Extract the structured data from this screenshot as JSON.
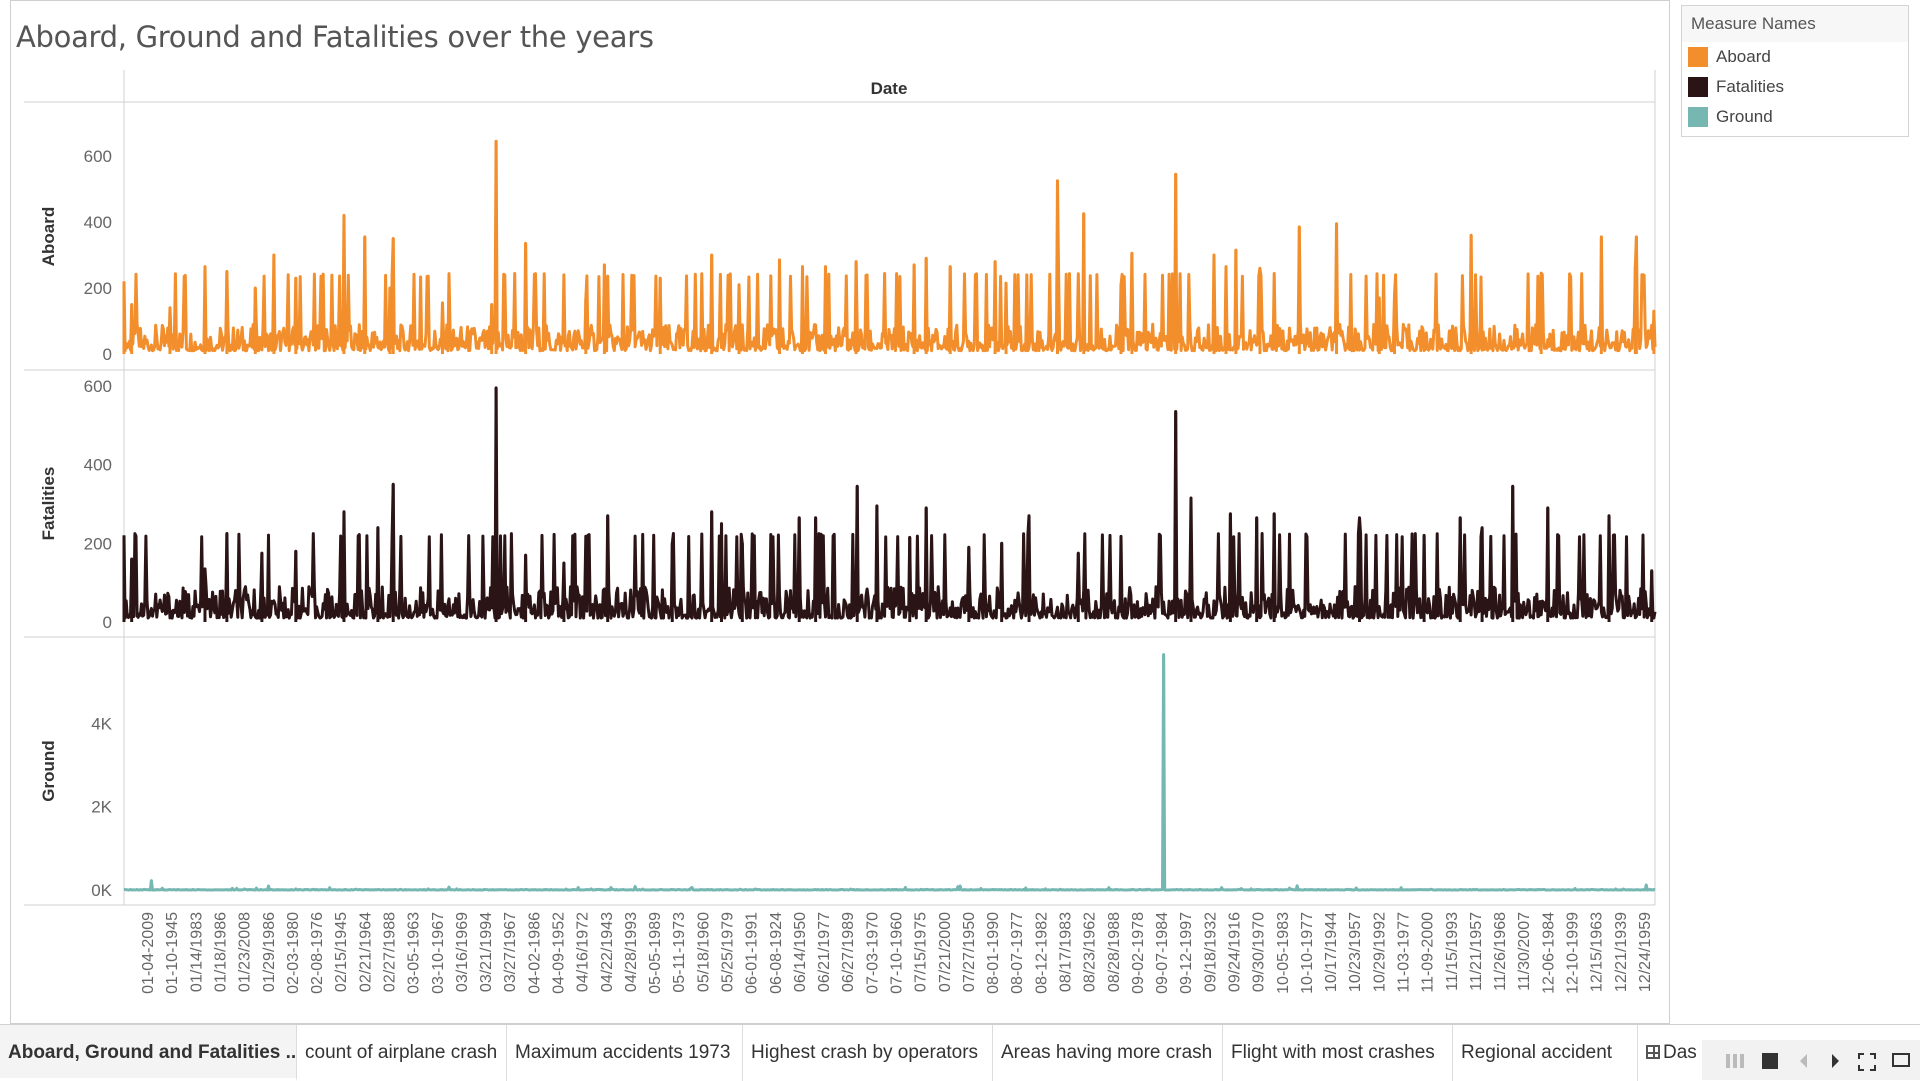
{
  "sheet": {
    "title": "Aboard, Ground and Fatalities over the years"
  },
  "legend": {
    "title": "Measure Names",
    "items": [
      {
        "label": "Aboard",
        "color": "#F28E2B"
      },
      {
        "label": "Fatalities",
        "color": "#2B1415"
      },
      {
        "label": "Ground",
        "color": "#76B7B2"
      }
    ]
  },
  "chart_data": {
    "type": "line",
    "title": "Aboard, Ground and Fatalities over the years",
    "column_header": "Date",
    "x_tick_labels": [
      "01-04-2009",
      "01-10-1945",
      "01/14/1983",
      "01/18/1986",
      "01/23/2008",
      "01/29/1986",
      "02-03-1980",
      "02-08-1976",
      "02/15/1945",
      "02/21/1964",
      "02/27/1988",
      "03-05-1963",
      "03-10-1967",
      "03/16/1969",
      "03/21/1994",
      "03/27/1967",
      "04-02-1986",
      "04-09-1952",
      "04/16/1972",
      "04/22/1943",
      "04/28/1993",
      "05-05-1989",
      "05-11-1973",
      "05/18/1960",
      "05/25/1979",
      "06-01-1991",
      "06-08-1924",
      "06/14/1950",
      "06/21/1977",
      "06/27/1989",
      "07-03-1970",
      "07-10-1960",
      "07/15/1975",
      "07/21/2000",
      "07/27/1950",
      "08-01-1990",
      "08-07-1977",
      "08-12-1982",
      "08/17/1983",
      "08/23/1962",
      "08/28/1988",
      "09-02-1978",
      "09-07-1984",
      "09-12-1997",
      "09/18/1932",
      "09/24/1916",
      "09/30/1970",
      "10-05-1983",
      "10-10-1977",
      "10/17/1944",
      "10/23/1957",
      "10/29/1992",
      "11-03-1977",
      "11-09-2000",
      "11/15/1993",
      "11/21/1957",
      "11/26/1968",
      "11/30/2007",
      "12-06-1984",
      "12-10-1999",
      "12/15/1963",
      "12/21/1939",
      "12/24/1959"
    ],
    "series": [
      {
        "name": "Aboard",
        "color": "#F28E2B",
        "ylim": [
          0,
          700
        ],
        "yticks": [
          0,
          200,
          400,
          600
        ],
        "ytick_labels": [
          "0",
          "200",
          "400",
          "600"
        ],
        "axis_label": "Aboard",
        "spikes": [
          [
            0.0,
            220
          ],
          [
            0.005,
            150
          ],
          [
            0.03,
            140
          ],
          [
            0.053,
            265
          ],
          [
            0.067,
            250
          ],
          [
            0.086,
            200
          ],
          [
            0.098,
            300
          ],
          [
            0.112,
            230
          ],
          [
            0.144,
            420
          ],
          [
            0.157,
            355
          ],
          [
            0.174,
            200
          ],
          [
            0.176,
            350
          ],
          [
            0.208,
            155
          ],
          [
            0.24,
            150
          ],
          [
            0.243,
            645
          ],
          [
            0.262,
            335
          ],
          [
            0.302,
            165
          ],
          [
            0.314,
            270
          ],
          [
            0.35,
            230
          ],
          [
            0.384,
            300
          ],
          [
            0.402,
            210
          ],
          [
            0.428,
            285
          ],
          [
            0.443,
            265
          ],
          [
            0.458,
            265
          ],
          [
            0.478,
            280
          ],
          [
            0.516,
            270
          ],
          [
            0.524,
            290
          ],
          [
            0.54,
            265
          ],
          [
            0.569,
            280
          ],
          [
            0.576,
            215
          ],
          [
            0.61,
            525
          ],
          [
            0.627,
            425
          ],
          [
            0.651,
            210
          ],
          [
            0.658,
            305
          ],
          [
            0.687,
            545
          ],
          [
            0.712,
            300
          ],
          [
            0.72,
            265
          ],
          [
            0.726,
            315
          ],
          [
            0.742,
            260
          ],
          [
            0.768,
            385
          ],
          [
            0.792,
            395
          ],
          [
            0.82,
            170
          ],
          [
            0.83,
            180
          ],
          [
            0.88,
            360
          ],
          [
            0.926,
            245
          ],
          [
            0.965,
            355
          ],
          [
            0.987,
            265
          ],
          [
            0.988,
            355
          ],
          [
            0.999,
            130
          ]
        ],
        "baseline_range": [
          10,
          90
        ]
      },
      {
        "name": "Fatalities",
        "color": "#2B1415",
        "ylim": [
          0,
          615
        ],
        "yticks": [
          0,
          200,
          400,
          600
        ],
        "ytick_labels": [
          "0",
          "200",
          "400",
          "600"
        ],
        "axis_label": "Fatalities",
        "spikes": [
          [
            0.0,
            220
          ],
          [
            0.005,
            160
          ],
          [
            0.053,
            135
          ],
          [
            0.067,
            225
          ],
          [
            0.09,
            175
          ],
          [
            0.112,
            180
          ],
          [
            0.144,
            280
          ],
          [
            0.166,
            240
          ],
          [
            0.176,
            350
          ],
          [
            0.243,
            595
          ],
          [
            0.262,
            170
          ],
          [
            0.287,
            150
          ],
          [
            0.316,
            270
          ],
          [
            0.358,
            200
          ],
          [
            0.384,
            280
          ],
          [
            0.39,
            250
          ],
          [
            0.404,
            200
          ],
          [
            0.441,
            265
          ],
          [
            0.452,
            265
          ],
          [
            0.479,
            345
          ],
          [
            0.492,
            295
          ],
          [
            0.513,
            215
          ],
          [
            0.524,
            290
          ],
          [
            0.552,
            190
          ],
          [
            0.573,
            200
          ],
          [
            0.591,
            270
          ],
          [
            0.623,
            175
          ],
          [
            0.687,
            535
          ],
          [
            0.697,
            315
          ],
          [
            0.723,
            275
          ],
          [
            0.74,
            265
          ],
          [
            0.751,
            275
          ],
          [
            0.807,
            265
          ],
          [
            0.849,
            220
          ],
          [
            0.873,
            265
          ],
          [
            0.887,
            240
          ],
          [
            0.907,
            345
          ],
          [
            0.93,
            290
          ],
          [
            0.97,
            270
          ],
          [
            0.998,
            130
          ]
        ],
        "baseline_range": [
          10,
          90
        ]
      },
      {
        "name": "Ground",
        "color": "#76B7B2",
        "ylim": [
          0,
          6000
        ],
        "yticks": [
          0,
          2000,
          4000
        ],
        "ytick_labels": [
          "0K",
          "2K",
          "4K"
        ],
        "axis_label": "Ground",
        "spikes": [
          [
            0.018,
            225
          ],
          [
            0.094,
            95
          ],
          [
            0.212,
            70
          ],
          [
            0.334,
            85
          ],
          [
            0.545,
            80
          ],
          [
            0.546,
            95
          ],
          [
            0.679,
            5650
          ],
          [
            0.766,
            100
          ],
          [
            0.994,
            120
          ]
        ],
        "baseline_range": [
          0,
          15
        ]
      }
    ]
  },
  "tabs": [
    {
      "label": "Aboard, Ground and Fatalities ...",
      "active": true
    },
    {
      "label": "count of airplane crash"
    },
    {
      "label": "Maximum accidents 1973"
    },
    {
      "label": "Highest crash by operators"
    },
    {
      "label": "Areas having more crash"
    },
    {
      "label": "Flight with most crashes"
    },
    {
      "label": "Regional accident"
    },
    {
      "label": "Das"
    }
  ],
  "nav_icons": [
    "sheet-sorter-icon",
    "filmstrip-icon",
    "previous-sheet-icon",
    "next-sheet-icon",
    "fit-screen-icon",
    "presentation-mode-icon"
  ]
}
